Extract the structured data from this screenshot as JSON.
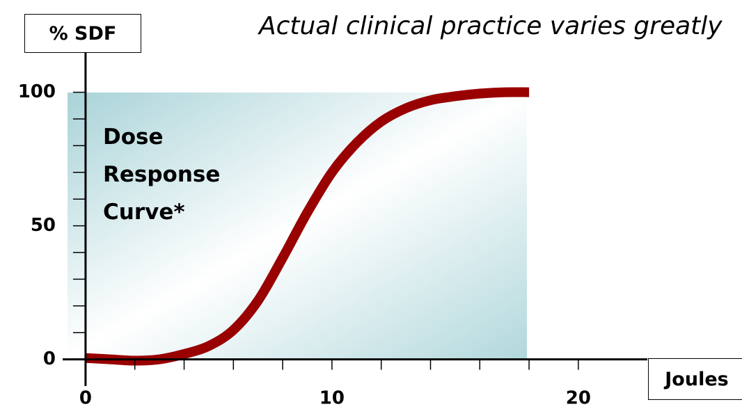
{
  "chart_data": {
    "type": "line",
    "annotations": [
      "Actual clinical practice varies greatly",
      "Dose Response Curve*"
    ],
    "ylabel": "% SDF",
    "xlabel": "Joules",
    "x": [
      0,
      1,
      2,
      3,
      4,
      5,
      6,
      7,
      8,
      9,
      10,
      11,
      12,
      13,
      14,
      15,
      16,
      17,
      18
    ],
    "series": [
      {
        "color": "#990000",
        "values": [
          0.5,
          0,
          -0.5,
          0,
          2,
          5,
          11,
          22,
          38,
          55,
          70,
          81,
          89,
          94,
          97,
          98.5,
          99.5,
          100,
          100
        ]
      }
    ],
    "xlim": [
      -0.93,
      22.8
    ],
    "ylim": [
      -10,
      115
    ],
    "xticks": [
      0,
      10,
      20
    ],
    "yticks": [
      0,
      50,
      100
    ],
    "xminor_ticks": [
      0,
      2,
      4,
      6,
      8,
      10,
      12,
      14,
      16,
      18,
      20
    ],
    "yminor_ticks": [
      0,
      10,
      20,
      30,
      40,
      50,
      60,
      70,
      80,
      90,
      100
    ]
  }
}
